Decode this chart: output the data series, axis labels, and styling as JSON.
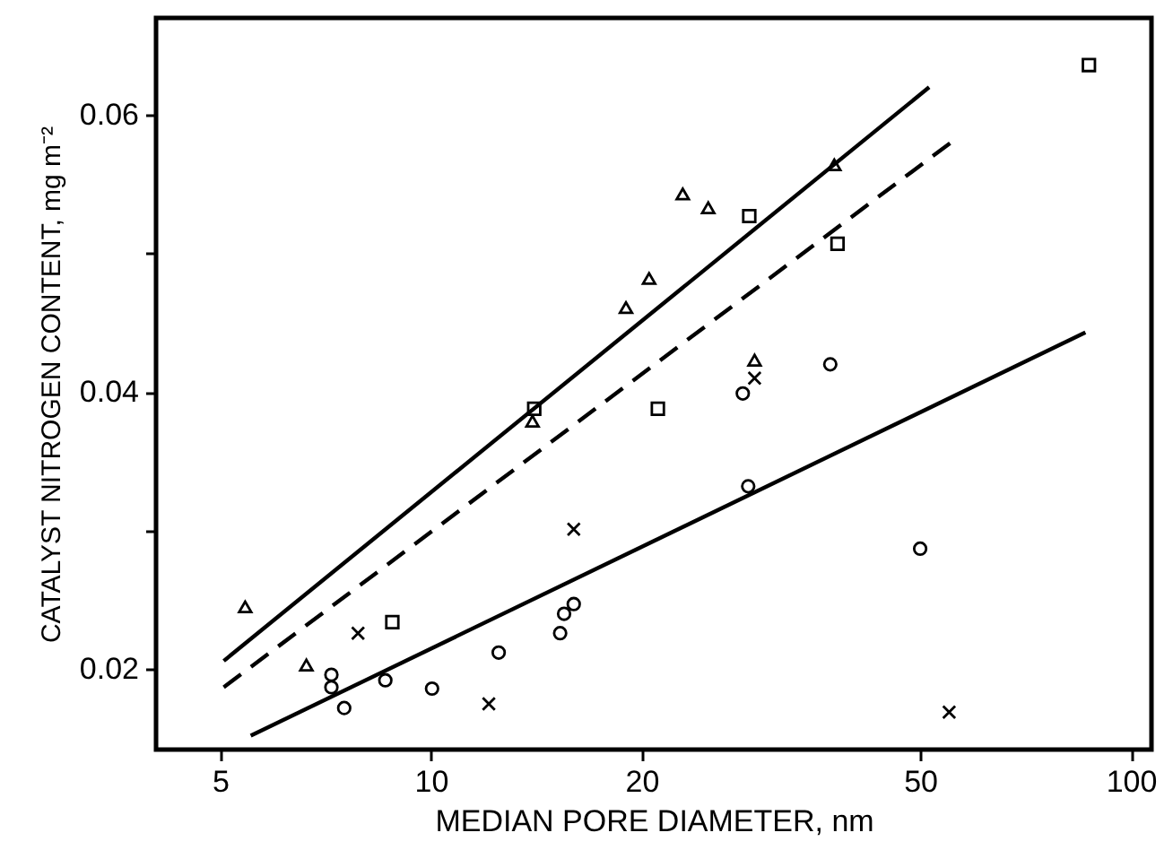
{
  "chart_data": {
    "type": "scatter",
    "xlabel": "MEDIAN PORE DIAMETER, nm",
    "ylabel": "CATALYST NITROGEN CONTENT, mg m⁻²",
    "log": "x",
    "xlim": [
      4.05,
      107
    ],
    "xticks": [
      5,
      10,
      20,
      50,
      100
    ],
    "ylim": [
      0.0142,
      0.067
    ],
    "yticks": [
      0.02,
      {
        "value": 0.03,
        "label": null
      },
      0.04,
      {
        "value": 0.05,
        "label": null
      },
      0.06
    ],
    "grid": false,
    "series": [
      {
        "marker": "triangle",
        "color": "#000000",
        "x": [
          5.43,
          6.64,
          13.97,
          19.0,
          20.5,
          22.9,
          24.9,
          29.0,
          37.7
        ],
        "values": [
          0.0245,
          0.0203,
          0.0379,
          0.0461,
          0.0482,
          0.0543,
          0.0533,
          0.0423,
          0.0564
        ]
      },
      {
        "marker": "square",
        "color": "#000000",
        "x": [
          8.81,
          14.05,
          21.1,
          28.5,
          38.1,
          87.1
        ],
        "values": [
          0.0234,
          0.0388,
          0.0388,
          0.0527,
          0.0507,
          0.0636
        ]
      },
      {
        "marker": "circle",
        "color": "#000000",
        "x": [
          7.21,
          7.21,
          7.52,
          8.61,
          10.04,
          12.5,
          15.3,
          15.5,
          16.0,
          27.9,
          28.4,
          37.2,
          50.0
        ],
        "values": [
          0.0196,
          0.0187,
          0.0172,
          0.0192,
          0.0186,
          0.0212,
          0.0226,
          0.024,
          0.0247,
          0.0399,
          0.0332,
          0.042,
          0.0287
        ]
      },
      {
        "marker": "cross",
        "color": "#000000",
        "x": [
          7.87,
          12.1,
          16.0,
          29.0,
          55.0
        ],
        "values": [
          0.0226,
          0.0175,
          0.0301,
          0.041,
          0.0169
        ]
      },
      {
        "type": "line",
        "line_style": "solid",
        "color": "#000000",
        "x": [
          5.06,
          51.5
        ],
        "values": [
          0.0206,
          0.062
        ]
      },
      {
        "type": "line",
        "line_style": "dashed",
        "color": "#000000",
        "x": [
          5.06,
          56.3
        ],
        "values": [
          0.0187,
          0.0583
        ]
      },
      {
        "type": "line",
        "line_style": "solid",
        "color": "#000000",
        "x": [
          5.53,
          86.1
        ],
        "values": [
          0.0152,
          0.0443
        ]
      }
    ]
  }
}
